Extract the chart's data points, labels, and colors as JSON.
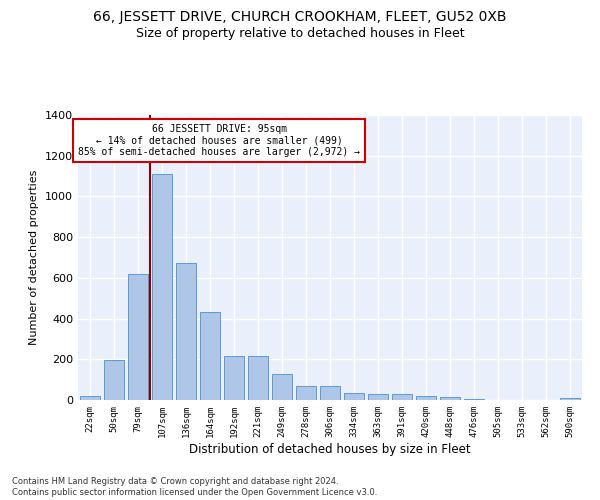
{
  "title": "66, JESSETT DRIVE, CHURCH CROOKHAM, FLEET, GU52 0XB",
  "subtitle": "Size of property relative to detached houses in Fleet",
  "xlabel": "Distribution of detached houses by size in Fleet",
  "ylabel": "Number of detached properties",
  "categories": [
    "22sqm",
    "50sqm",
    "79sqm",
    "107sqm",
    "136sqm",
    "164sqm",
    "192sqm",
    "221sqm",
    "249sqm",
    "278sqm",
    "306sqm",
    "334sqm",
    "363sqm",
    "391sqm",
    "420sqm",
    "448sqm",
    "476sqm",
    "505sqm",
    "533sqm",
    "562sqm",
    "590sqm"
  ],
  "values": [
    20,
    195,
    620,
    1110,
    675,
    430,
    215,
    215,
    130,
    70,
    70,
    35,
    30,
    30,
    20,
    15,
    7,
    0,
    0,
    0,
    12
  ],
  "bar_color": "#aec6e8",
  "bar_edge_color": "#5b9bd5",
  "property_line_color": "#8b0000",
  "annotation_text": "66 JESSETT DRIVE: 95sqm\n← 14% of detached houses are smaller (499)\n85% of semi-detached houses are larger (2,972) →",
  "annotation_box_color": "#ffffff",
  "annotation_box_edge_color": "#cc0000",
  "footer": "Contains HM Land Registry data © Crown copyright and database right 2024.\nContains public sector information licensed under the Open Government Licence v3.0.",
  "ylim": [
    0,
    1400
  ],
  "yticks": [
    0,
    200,
    400,
    600,
    800,
    1000,
    1200,
    1400
  ],
  "title_fontsize": 10,
  "subtitle_fontsize": 9,
  "background_color": "#eaf0fb",
  "grid_color": "#ffffff"
}
